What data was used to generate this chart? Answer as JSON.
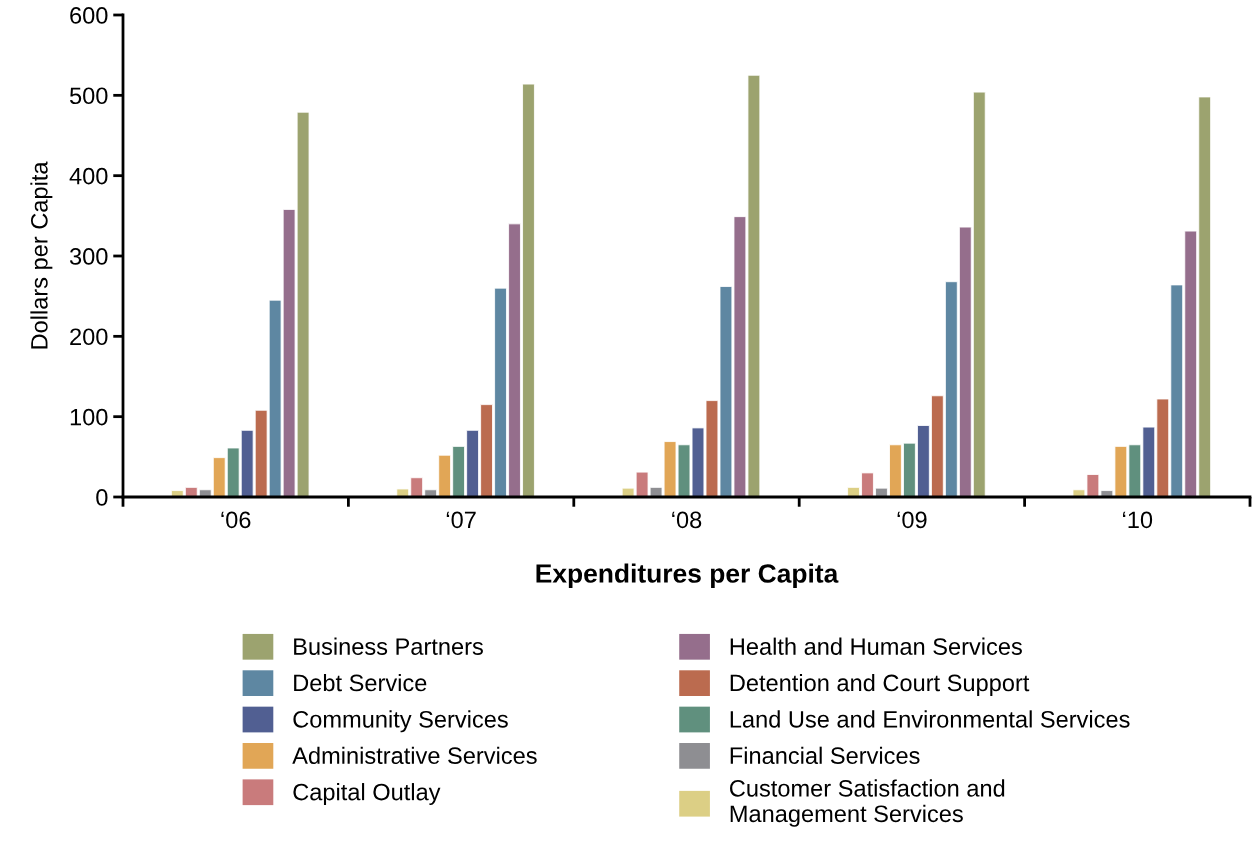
{
  "chart_data": {
    "type": "bar",
    "xlabel": "Expenditures per Capita",
    "ylabel": "Dollars per Capita",
    "categories": [
      "‘06",
      "‘07",
      "‘08",
      "‘09",
      "‘10"
    ],
    "ylim": [
      0,
      600
    ],
    "yticks": [
      0,
      100,
      200,
      300,
      400,
      500,
      600
    ],
    "grid": false,
    "legend": "bottom",
    "series": [
      {
        "name": "Customer Satisfaction and\nManagement Services",
        "color": "#dccf85",
        "values": [
          8,
          10,
          11,
          12,
          9
        ]
      },
      {
        "name": "Capital Outlay",
        "color": "#c97b7c",
        "values": [
          12,
          24,
          31,
          30,
          28
        ]
      },
      {
        "name": "Financial Services",
        "color": "#8e8e92",
        "values": [
          9,
          9,
          12,
          11,
          8
        ]
      },
      {
        "name": "Administrative Services",
        "color": "#e1a656",
        "values": [
          49,
          52,
          69,
          65,
          63
        ]
      },
      {
        "name": "Land Use and Environmental Services",
        "color": "#60907e",
        "values": [
          61,
          63,
          65,
          67,
          65
        ]
      },
      {
        "name": "Community Services",
        "color": "#515f92",
        "values": [
          83,
          83,
          86,
          89,
          87
        ]
      },
      {
        "name": "Detention and Court Support",
        "color": "#bb6b4f",
        "values": [
          108,
          115,
          120,
          126,
          122
        ]
      },
      {
        "name": "Debt Service",
        "color": "#5e87a2",
        "values": [
          245,
          260,
          262,
          268,
          264
        ]
      },
      {
        "name": "Health and Human Services",
        "color": "#956e8c",
        "values": [
          358,
          340,
          349,
          336,
          331
        ]
      },
      {
        "name": "Business Partners",
        "color": "#9ca36f",
        "values": [
          479,
          514,
          525,
          504,
          498
        ]
      }
    ]
  }
}
